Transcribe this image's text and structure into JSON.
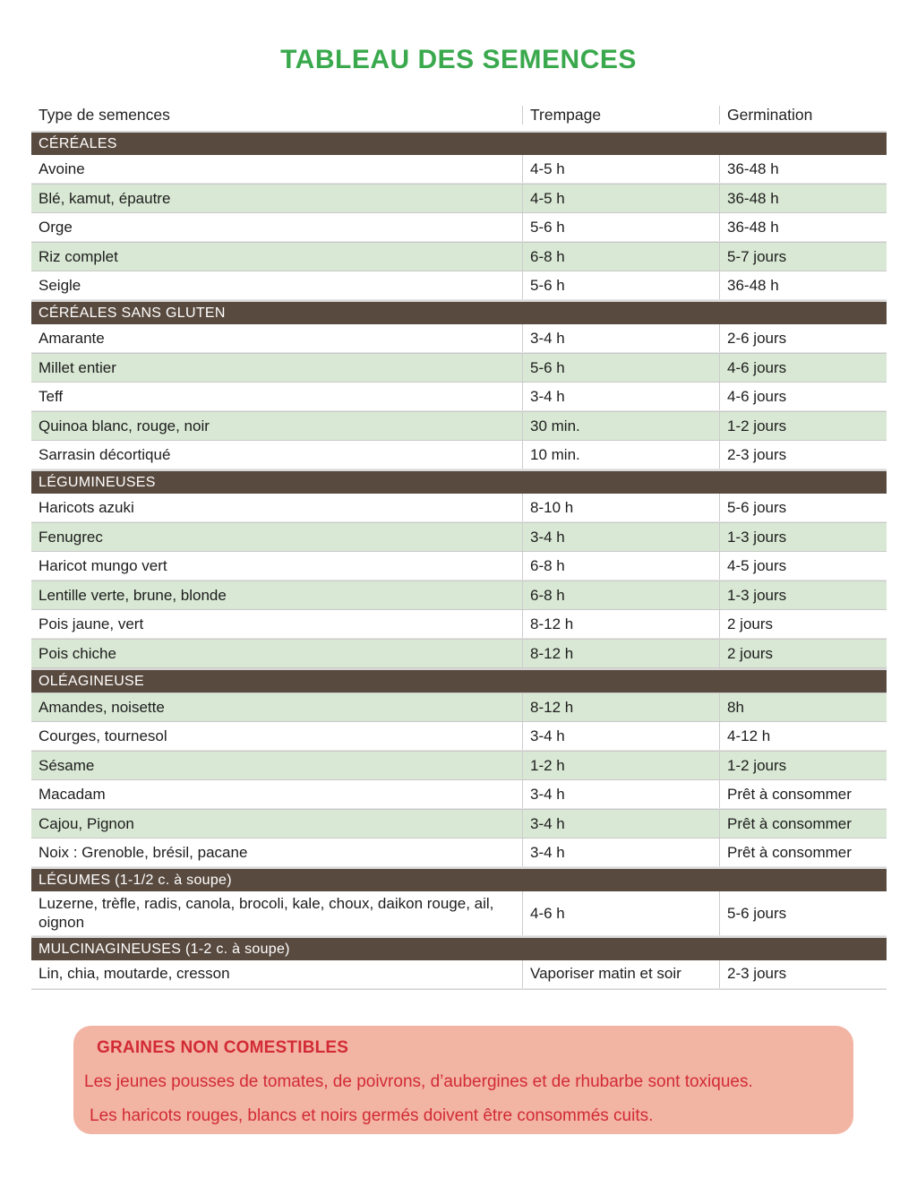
{
  "title": "TABLEAU DES SEMENCES",
  "colors": {
    "accent_green": "#3aa94d",
    "section_brown": "#594a3f",
    "row_green": "#d9e8d4",
    "warning_bg": "#f2b4a3",
    "warning_red": "#d22b35"
  },
  "table": {
    "columns": [
      "Type de semences",
      "Trempage",
      "Germination"
    ],
    "sections": [
      {
        "header": "CÉRÉALES",
        "first_row_shaded": false,
        "rows": [
          [
            "Avoine",
            "4-5 h",
            "36-48 h"
          ],
          [
            "Blé, kamut, épautre",
            "4-5 h",
            "36-48 h"
          ],
          [
            "Orge",
            "5-6 h",
            "36-48 h"
          ],
          [
            "Riz complet",
            "6-8 h",
            "5-7 jours"
          ],
          [
            "Seigle",
            "5-6 h",
            "36-48 h"
          ]
        ]
      },
      {
        "header": "CÉRÉALES SANS GLUTEN",
        "first_row_shaded": false,
        "rows": [
          [
            "Amarante",
            "3-4 h",
            "2-6 jours"
          ],
          [
            "Millet entier",
            "5-6 h",
            "4-6 jours"
          ],
          [
            "Teff",
            "3-4 h",
            "4-6 jours"
          ],
          [
            "Quinoa blanc, rouge, noir",
            "30 min.",
            "1-2 jours"
          ],
          [
            "Sarrasin décortiqué",
            "10 min.",
            "2-3 jours"
          ]
        ]
      },
      {
        "header": "LÉGUMINEUSES",
        "first_row_shaded": false,
        "rows": [
          [
            "Haricots azuki",
            "8-10 h",
            "5-6 jours"
          ],
          [
            "Fenugrec",
            "3-4 h",
            "1-3 jours"
          ],
          [
            "Haricot mungo vert",
            "6-8 h",
            "4-5 jours"
          ],
          [
            "Lentille verte, brune, blonde",
            "6-8 h",
            "1-3 jours"
          ],
          [
            "Pois jaune, vert",
            "8-12 h",
            "2 jours"
          ],
          [
            "Pois chiche",
            "8-12 h",
            "2 jours"
          ]
        ]
      },
      {
        "header": "OLÉAGINEUSE",
        "first_row_shaded": true,
        "rows": [
          [
            "Amandes, noisette",
            "8-12 h",
            "8h"
          ],
          [
            "Courges, tournesol",
            "3-4 h",
            "4-12 h"
          ],
          [
            "Sésame",
            "1-2 h",
            "1-2 jours"
          ],
          [
            "Macadam",
            "3-4 h",
            "Prêt à consommer"
          ],
          [
            "Cajou, Pignon",
            "3-4 h",
            "Prêt à consommer"
          ],
          [
            "Noix : Grenoble, brésil, pacane",
            "3-4 h",
            "Prêt à consommer"
          ]
        ]
      },
      {
        "header": "LÉGUMES (1-1/2 c. à soupe)",
        "first_row_shaded": false,
        "rows": [
          [
            "Luzerne, trèfle, radis, canola, brocoli, kale, choux, daikon rouge, ail, oignon",
            "4-6 h",
            "5-6 jours"
          ]
        ]
      },
      {
        "header": "MULCINAGINEUSES (1-2 c. à soupe)",
        "first_row_shaded": false,
        "rows": [
          [
            "Lin, chia, moutarde, cresson",
            "Vaporiser matin et soir",
            "2-3 jours"
          ]
        ]
      }
    ]
  },
  "warning": {
    "title": "GRAINES NON COMESTIBLES",
    "lines": [
      "Les jeunes pousses de tomates, de poivrons, d’aubergines et de rhubarbe sont toxiques.",
      "Les haricots rouges, blancs et noirs germés doivent être consommés cuits."
    ]
  }
}
